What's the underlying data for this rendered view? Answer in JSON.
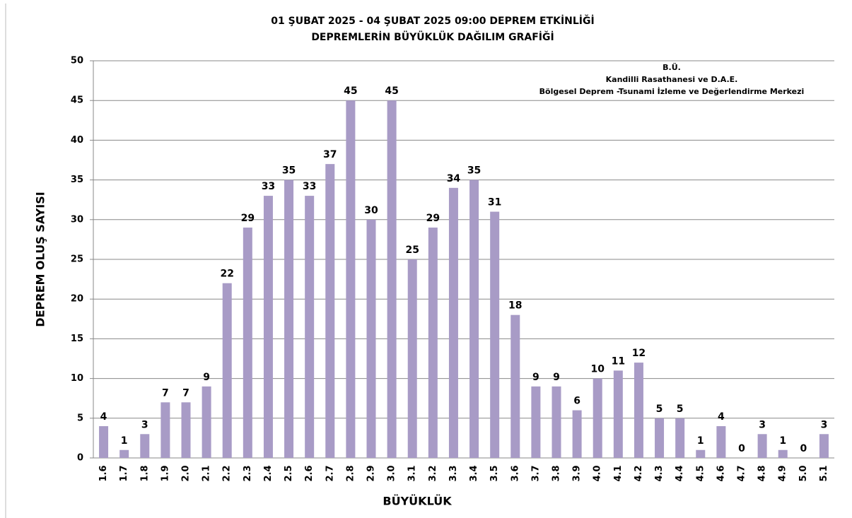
{
  "chart_data": {
    "type": "bar",
    "title": "01 ŞUBAT 2025 - 04 ŞUBAT 2025 09:00  DEPREM ETKİNLİĞİ",
    "subtitle": "DEPREMLERİN BÜYÜKLÜK DAĞILIM GRAFİĞİ",
    "annotations": [
      "B.Ü.",
      "Kandilli Rasathanesi ve D.A.E.",
      "Bölgesel Deprem -Tsunami İzleme ve Değerlendirme Merkezi"
    ],
    "x_label": "BÜYÜKLÜK",
    "y_label": "DEPREM OLUŞ SAYISI",
    "categories": [
      "1.6",
      "1.7",
      "1.8",
      "1.9",
      "2.0",
      "2.1",
      "2.2",
      "2.3",
      "2.4",
      "2.5",
      "2.6",
      "2.7",
      "2.8",
      "2.9",
      "3.0",
      "3.1",
      "3.2",
      "3.3",
      "3.4",
      "3.5",
      "3.6",
      "3.7",
      "3.8",
      "3.9",
      "4.0",
      "4.1",
      "4.2",
      "4.3",
      "4.4",
      "4.5",
      "4.6",
      "4.7",
      "4.8",
      "4.9",
      "5.0",
      "5.1"
    ],
    "values": [
      4,
      1,
      3,
      7,
      7,
      9,
      22,
      29,
      33,
      35,
      33,
      37,
      45,
      30,
      45,
      25,
      29,
      34,
      35,
      31,
      18,
      9,
      9,
      6,
      10,
      11,
      12,
      5,
      5,
      1,
      4,
      0,
      3,
      1,
      0,
      3
    ],
    "color": "#a89bc6",
    "ylim": [
      0,
      50
    ],
    "yticks": [
      0,
      5,
      10,
      15,
      20,
      25,
      30,
      35,
      40,
      45,
      50
    ],
    "grid": true
  }
}
